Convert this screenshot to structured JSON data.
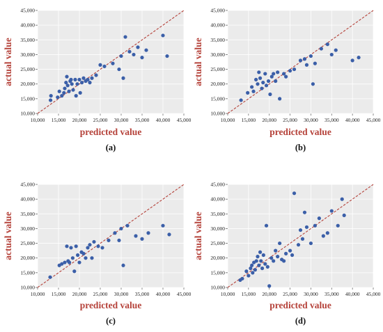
{
  "chart_data": [
    {
      "type": "scatter",
      "panel_label": "(a)",
      "xlabel": "predicted value",
      "ylabel": "actual value",
      "xlim": [
        10000,
        45000
      ],
      "ylim": [
        10000,
        45000
      ],
      "xticks": [
        "10,000",
        "15,000",
        "20,000",
        "25,000",
        "30,000",
        "35,000",
        "40,000",
        "45,000"
      ],
      "yticks": [
        "10,000",
        "15,000",
        "20,000",
        "25,000",
        "30,000",
        "35,000",
        "40,000",
        "45,000"
      ],
      "grid": true,
      "reference_line": "y = x",
      "colors": {
        "points": "#3b5fa8",
        "line": "#b5423a",
        "plot_bg": "#ebebeb"
      },
      "series": [
        {
          "x": [
            13200,
            13100,
            14800,
            15200,
            15800,
            16300,
            16500,
            16800,
            17000,
            17200,
            17500,
            17800,
            18000,
            18200,
            18500,
            19000,
            19200,
            19500,
            20000,
            20200,
            20600,
            21000,
            21500,
            22000,
            22500,
            23000,
            24000,
            25000,
            26000,
            28000,
            29500,
            30000,
            30500,
            31000,
            32000,
            33000,
            34000,
            35000,
            36000,
            40000,
            41000
          ],
          "y": [
            16000,
            14500,
            15500,
            17500,
            16000,
            17000,
            18500,
            20500,
            22500,
            19500,
            17500,
            21000,
            21500,
            20000,
            18000,
            21500,
            16000,
            20000,
            21500,
            17000,
            20500,
            22000,
            21000,
            21500,
            20500,
            22000,
            23000,
            26500,
            26000,
            27000,
            25000,
            29500,
            22000,
            36000,
            31000,
            30000,
            32500,
            29000,
            31500,
            36500,
            29500
          ]
        }
      ]
    },
    {
      "type": "scatter",
      "panel_label": "(b)",
      "xlabel": "predicted value",
      "ylabel": "actual value",
      "xlim": [
        10000,
        45000
      ],
      "ylim": [
        10000,
        45000
      ],
      "xticks": [
        "10,000",
        "15,000",
        "20,000",
        "25,000",
        "30,000",
        "35,000",
        "40,000",
        "45,000"
      ],
      "yticks": [
        "10,000",
        "15,000",
        "20,000",
        "25,000",
        "30,000",
        "35,000",
        "40,000",
        "45,000"
      ],
      "grid": true,
      "reference_line": "y = x",
      "colors": {
        "points": "#3b5fa8",
        "line": "#b5423a",
        "plot_bg": "#ebebeb"
      },
      "series": [
        {
          "x": [
            13200,
            14800,
            15800,
            16200,
            16800,
            17200,
            17500,
            17800,
            18200,
            18500,
            19000,
            19300,
            19800,
            20200,
            20600,
            21000,
            21500,
            22000,
            22500,
            23500,
            24000,
            25000,
            26000,
            27500,
            28500,
            29000,
            30000,
            30500,
            31000,
            32500,
            34000,
            35000,
            36000,
            40000,
            41500
          ],
          "y": [
            14500,
            17000,
            19000,
            17500,
            21500,
            20000,
            24000,
            22000,
            18500,
            20500,
            23500,
            19500,
            21000,
            16500,
            22500,
            23500,
            21000,
            24000,
            15000,
            23500,
            22500,
            24500,
            25000,
            28000,
            28500,
            26500,
            29500,
            20000,
            27000,
            32000,
            33500,
            30000,
            31500,
            28000,
            29000
          ]
        }
      ]
    },
    {
      "type": "scatter",
      "panel_label": "(c)",
      "xlabel": "predicted value",
      "ylabel": "actual value",
      "xlim": [
        10000,
        45000
      ],
      "ylim": [
        10000,
        45000
      ],
      "xticks": [
        "10,000",
        "15,000",
        "20,000",
        "25,000",
        "30,000",
        "35,000",
        "40,000",
        "45,000"
      ],
      "yticks": [
        "10,000",
        "15,000",
        "20,000",
        "25,000",
        "30,000",
        "35,000",
        "40,000",
        "45,000"
      ],
      "grid": true,
      "reference_line": "y = x",
      "colors": {
        "points": "#3b5fa8",
        "line": "#b5423a",
        "plot_bg": "#ebebeb"
      },
      "series": [
        {
          "x": [
            13000,
            15200,
            15800,
            16500,
            17000,
            17300,
            17600,
            18000,
            18400,
            18800,
            19200,
            19600,
            20000,
            20500,
            21000,
            21500,
            22000,
            22500,
            23000,
            23500,
            24500,
            25500,
            27000,
            28500,
            29500,
            30000,
            30500,
            31500,
            33500,
            35000,
            36500,
            40000,
            41500
          ],
          "y": [
            13500,
            17500,
            18000,
            18500,
            24000,
            19000,
            18500,
            23500,
            20000,
            15500,
            24000,
            21000,
            18500,
            22000,
            21500,
            20000,
            23500,
            24500,
            20000,
            25500,
            24000,
            23500,
            26000,
            28500,
            26000,
            30000,
            17500,
            31000,
            27500,
            26500,
            28500,
            31000,
            28000
          ]
        }
      ]
    },
    {
      "type": "scatter",
      "panel_label": "(d)",
      "xlabel": "predicted value",
      "ylabel": "actual value",
      "xlim": [
        10000,
        45000
      ],
      "ylim": [
        10000,
        45000
      ],
      "xticks": [
        "10,000",
        "15,000",
        "20,000",
        "25,000",
        "30,000",
        "35,000",
        "40,000",
        "45,000"
      ],
      "yticks": [
        "10,000",
        "15,000",
        "20,000",
        "25,000",
        "30,000",
        "35,000",
        "40,000",
        "45,000"
      ],
      "grid": true,
      "reference_line": "y = x",
      "colors": {
        "points": "#3b5fa8",
        "line": "#b5423a",
        "plot_bg": "#ebebeb"
      },
      "series": [
        {
          "x": [
            13000,
            13500,
            14500,
            15000,
            15500,
            15800,
            16000,
            16300,
            16600,
            16900,
            17200,
            17500,
            17800,
            18000,
            18300,
            18600,
            19000,
            19300,
            19600,
            20000,
            20500,
            21000,
            21500,
            22000,
            22500,
            23000,
            23500,
            24000,
            25000,
            25500,
            26000,
            27000,
            27500,
            28000,
            28500,
            29000,
            30000,
            31000,
            32000,
            33000,
            34000,
            35000,
            36500,
            37500,
            38000
          ],
          "y": [
            12500,
            13000,
            15500,
            14000,
            16500,
            17500,
            15000,
            18500,
            16000,
            19000,
            20500,
            17500,
            22000,
            19000,
            16500,
            21000,
            18000,
            31000,
            17000,
            10500,
            20000,
            19000,
            22500,
            20500,
            25000,
            19500,
            19000,
            21500,
            22500,
            21000,
            42000,
            24500,
            29500,
            26500,
            35500,
            30500,
            25000,
            31000,
            33500,
            27500,
            28500,
            36000,
            31000,
            40000,
            34500
          ]
        }
      ]
    }
  ]
}
